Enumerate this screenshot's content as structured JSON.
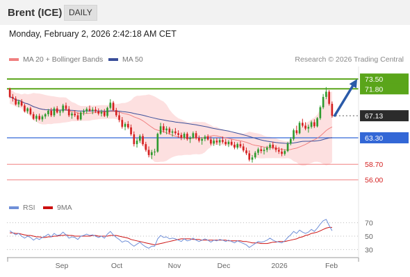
{
  "header": {
    "instrument": "Brent (ICE)",
    "timeframe": "DAILY"
  },
  "timestamp": "Monday, February 2, 2026 2:42:18 AM CET",
  "legend": {
    "ma20_bb": "MA 20 + Bollinger Bands",
    "ma50": "MA 50",
    "copyright": "Research © 2026 Trading Central"
  },
  "rsi_legend": {
    "rsi": "RSI",
    "ma9": "9MA"
  },
  "colors": {
    "up": "#2e9a2e",
    "down": "#d42020",
    "resistance": "#5aa51a",
    "support_blue": "#3367d6",
    "support_red": "#f08080",
    "current": "#2b2b2b",
    "arrow": "#2a5aa8",
    "band_fill": "#fde0e0",
    "ma20": "#f08080",
    "ma50": "#3a4f9a",
    "rsi_line": "#6f8fd8",
    "rsi_ma": "#cc1010"
  },
  "chart_data": [
    {
      "type": "candlestick",
      "title": "Brent (ICE)",
      "ylim": [
        53.8,
        75.2
      ],
      "x_labels": [
        "Sep",
        "Oct",
        "Nov",
        "Dec",
        "2026",
        "Feb"
      ],
      "levels": [
        {
          "value": 73.5,
          "label": "73.50",
          "kind": "resistance"
        },
        {
          "value": 71.8,
          "label": "71.80",
          "kind": "resistance"
        },
        {
          "value": 67.13,
          "label": "67.13",
          "kind": "current"
        },
        {
          "value": 63.3,
          "label": "63.30",
          "kind": "pivot"
        },
        {
          "value": 58.7,
          "label": "58.70",
          "kind": "support"
        },
        {
          "value": 56.0,
          "label": "56.00",
          "kind": "support"
        }
      ],
      "projection": {
        "from": 67.0,
        "to": 73.5
      },
      "ohlc": [
        [
          71.8,
          72.0,
          70.2,
          70.4
        ],
        [
          70.4,
          70.9,
          69.6,
          70.1
        ],
        [
          70.1,
          70.5,
          68.9,
          69.1
        ],
        [
          69.1,
          69.9,
          68.6,
          69.6
        ],
        [
          69.6,
          70.0,
          68.7,
          68.9
        ],
        [
          68.9,
          69.2,
          67.7,
          67.9
        ],
        [
          67.9,
          68.6,
          67.5,
          68.4
        ],
        [
          68.4,
          68.7,
          67.2,
          67.4
        ],
        [
          67.4,
          67.8,
          66.4,
          66.6
        ],
        [
          66.6,
          67.4,
          66.1,
          67.1
        ],
        [
          67.1,
          67.5,
          66.3,
          66.5
        ],
        [
          66.5,
          67.3,
          66.1,
          67.0
        ],
        [
          67.0,
          67.6,
          66.6,
          67.4
        ],
        [
          67.4,
          68.3,
          67.0,
          68.0
        ],
        [
          68.0,
          68.5,
          66.9,
          67.2
        ],
        [
          67.2,
          68.7,
          66.9,
          68.4
        ],
        [
          68.4,
          68.8,
          67.5,
          67.7
        ],
        [
          67.7,
          68.2,
          67.1,
          67.9
        ],
        [
          67.9,
          69.2,
          67.6,
          68.9
        ],
        [
          68.9,
          69.4,
          68.0,
          68.3
        ],
        [
          68.3,
          68.8,
          66.9,
          67.2
        ],
        [
          67.2,
          67.8,
          66.6,
          67.5
        ],
        [
          67.5,
          68.1,
          66.9,
          67.2
        ],
        [
          67.2,
          67.7,
          66.3,
          66.5
        ],
        [
          66.5,
          67.9,
          66.3,
          67.7
        ],
        [
          67.7,
          68.3,
          67.2,
          67.9
        ],
        [
          67.9,
          68.6,
          67.5,
          68.3
        ],
        [
          68.3,
          68.9,
          67.8,
          68.0
        ],
        [
          68.0,
          68.6,
          67.4,
          68.2
        ],
        [
          68.2,
          68.7,
          67.6,
          67.9
        ],
        [
          67.9,
          68.4,
          67.2,
          67.5
        ],
        [
          67.5,
          68.2,
          67.0,
          67.8
        ],
        [
          67.8,
          68.3,
          66.9,
          67.1
        ],
        [
          67.1,
          68.7,
          66.8,
          68.5
        ],
        [
          68.5,
          70.0,
          68.2,
          69.4
        ],
        [
          69.4,
          69.7,
          67.9,
          68.1
        ],
        [
          68.1,
          68.5,
          66.9,
          67.2
        ],
        [
          67.2,
          67.8,
          66.0,
          66.4
        ],
        [
          66.4,
          66.9,
          64.9,
          65.2
        ],
        [
          65.2,
          66.0,
          64.6,
          65.7
        ],
        [
          65.7,
          66.2,
          64.8,
          65.1
        ],
        [
          65.1,
          65.6,
          63.6,
          63.9
        ],
        [
          63.9,
          64.4,
          61.8,
          62.2
        ],
        [
          62.2,
          63.2,
          61.6,
          62.8
        ],
        [
          62.8,
          63.9,
          62.4,
          63.6
        ],
        [
          63.6,
          64.0,
          61.9,
          62.2
        ],
        [
          62.2,
          62.6,
          60.9,
          61.2
        ],
        [
          61.2,
          61.8,
          59.9,
          60.3
        ],
        [
          60.3,
          61.2,
          59.6,
          60.8
        ],
        [
          60.8,
          61.4,
          60.2,
          60.9
        ],
        [
          60.9,
          64.2,
          60.7,
          64.0
        ],
        [
          64.0,
          65.9,
          63.8,
          65.3
        ],
        [
          65.3,
          65.8,
          64.2,
          64.6
        ],
        [
          64.6,
          65.3,
          63.9,
          64.9
        ],
        [
          64.9,
          65.2,
          63.9,
          64.2
        ],
        [
          64.2,
          64.8,
          63.5,
          64.4
        ],
        [
          64.4,
          65.0,
          63.8,
          64.1
        ],
        [
          64.1,
          64.6,
          63.3,
          63.8
        ],
        [
          63.8,
          64.2,
          62.9,
          63.3
        ],
        [
          63.3,
          64.3,
          63.0,
          64.0
        ],
        [
          64.0,
          64.3,
          62.8,
          63.1
        ],
        [
          63.1,
          63.6,
          62.4,
          63.3
        ],
        [
          63.3,
          64.4,
          63.1,
          64.1
        ],
        [
          64.1,
          64.5,
          63.0,
          63.3
        ],
        [
          63.3,
          63.7,
          62.5,
          62.8
        ],
        [
          62.8,
          63.4,
          62.1,
          63.1
        ],
        [
          63.1,
          63.8,
          62.7,
          63.5
        ],
        [
          63.5,
          63.9,
          62.8,
          63.0
        ],
        [
          63.0,
          63.5,
          62.0,
          62.3
        ],
        [
          62.3,
          63.2,
          61.9,
          62.8
        ],
        [
          62.8,
          63.3,
          62.1,
          62.5
        ],
        [
          62.5,
          63.2,
          61.9,
          62.9
        ],
        [
          62.9,
          63.5,
          62.3,
          62.6
        ],
        [
          62.6,
          63.1,
          61.9,
          62.2
        ],
        [
          62.2,
          62.9,
          61.7,
          62.6
        ],
        [
          62.6,
          63.0,
          61.9,
          62.1
        ],
        [
          62.1,
          62.6,
          61.3,
          61.6
        ],
        [
          61.6,
          62.5,
          61.3,
          62.2
        ],
        [
          62.2,
          62.7,
          61.5,
          61.8
        ],
        [
          61.8,
          62.3,
          60.8,
          61.1
        ],
        [
          61.1,
          61.6,
          60.3,
          60.6
        ],
        [
          60.6,
          61.1,
          59.2,
          59.5
        ],
        [
          59.5,
          60.3,
          59.0,
          59.9
        ],
        [
          59.9,
          61.0,
          59.6,
          60.7
        ],
        [
          60.7,
          61.6,
          60.3,
          61.3
        ],
        [
          61.3,
          61.8,
          60.6,
          61.0
        ],
        [
          61.0,
          61.6,
          60.4,
          61.2
        ],
        [
          61.2,
          61.9,
          60.8,
          61.6
        ],
        [
          61.6,
          62.4,
          61.2,
          62.1
        ],
        [
          62.1,
          62.6,
          61.3,
          61.6
        ],
        [
          61.6,
          62.0,
          60.8,
          61.2
        ],
        [
          61.2,
          61.7,
          60.5,
          60.9
        ],
        [
          60.9,
          61.5,
          60.1,
          60.5
        ],
        [
          60.5,
          61.3,
          60.2,
          61.0
        ],
        [
          61.0,
          62.6,
          60.8,
          62.3
        ],
        [
          62.3,
          63.4,
          62.0,
          63.1
        ],
        [
          63.1,
          64.9,
          62.8,
          64.6
        ],
        [
          64.6,
          65.4,
          63.8,
          64.1
        ],
        [
          64.1,
          66.2,
          63.9,
          65.9
        ],
        [
          65.9,
          66.6,
          65.1,
          65.4
        ],
        [
          65.4,
          66.0,
          64.6,
          64.9
        ],
        [
          64.9,
          65.6,
          64.2,
          65.2
        ],
        [
          65.2,
          66.3,
          64.9,
          66.0
        ],
        [
          66.0,
          66.5,
          65.0,
          65.3
        ],
        [
          65.3,
          66.9,
          65.1,
          66.7
        ],
        [
          66.7,
          68.9,
          66.4,
          68.6
        ],
        [
          68.6,
          70.9,
          68.3,
          70.4
        ],
        [
          70.4,
          72.1,
          70.0,
          71.3
        ],
        [
          71.3,
          71.6,
          68.9,
          69.2
        ],
        [
          69.2,
          69.6,
          66.8,
          67.13
        ]
      ]
    },
    {
      "type": "line",
      "title": "RSI",
      "ylim": [
        20,
        80
      ],
      "y_ticks": [
        30,
        50,
        70
      ],
      "series": [
        {
          "name": "RSI",
          "values": [
            58,
            55,
            52,
            54,
            50,
            47,
            50,
            48,
            44,
            47,
            45,
            48,
            50,
            53,
            49,
            54,
            51,
            52,
            56,
            52,
            47,
            49,
            48,
            45,
            50,
            51,
            53,
            51,
            52,
            50,
            48,
            50,
            47,
            53,
            57,
            52,
            48,
            45,
            41,
            43,
            42,
            38,
            35,
            38,
            41,
            37,
            34,
            32,
            35,
            35,
            46,
            51,
            48,
            49,
            46,
            47,
            46,
            44,
            42,
            46,
            43,
            44,
            47,
            44,
            42,
            44,
            46,
            44,
            41,
            44,
            43,
            45,
            44,
            42,
            44,
            42,
            40,
            43,
            41,
            39,
            37,
            33,
            36,
            39,
            42,
            41,
            42,
            44,
            47,
            44,
            42,
            41,
            40,
            43,
            48,
            52,
            57,
            54,
            59,
            56,
            54,
            56,
            60,
            57,
            62,
            68,
            73,
            75,
            66,
            58
          ]
        },
        {
          "name": "9MA",
          "values": [
            55,
            55,
            54,
            54,
            53,
            52,
            51,
            51,
            50,
            49,
            49,
            48,
            48,
            49,
            49,
            50,
            50,
            51,
            51,
            52,
            51,
            51,
            50,
            50,
            50,
            50,
            50,
            50,
            51,
            51,
            50,
            50,
            50,
            50,
            51,
            51,
            51,
            50,
            49,
            48,
            47,
            45,
            44,
            43,
            42,
            41,
            40,
            39,
            38,
            37,
            38,
            39,
            40,
            41,
            42,
            43,
            44,
            45,
            46,
            46,
            46,
            46,
            45,
            45,
            45,
            44,
            44,
            44,
            44,
            44,
            44,
            44,
            44,
            44,
            43,
            43,
            43,
            43,
            43,
            42,
            42,
            41,
            40,
            40,
            40,
            39,
            39,
            39,
            40,
            41,
            41,
            42,
            42,
            42,
            43,
            44,
            45,
            46,
            48,
            49,
            51,
            52,
            54,
            55,
            56,
            58,
            60,
            62,
            63,
            63
          ]
        }
      ]
    }
  ]
}
